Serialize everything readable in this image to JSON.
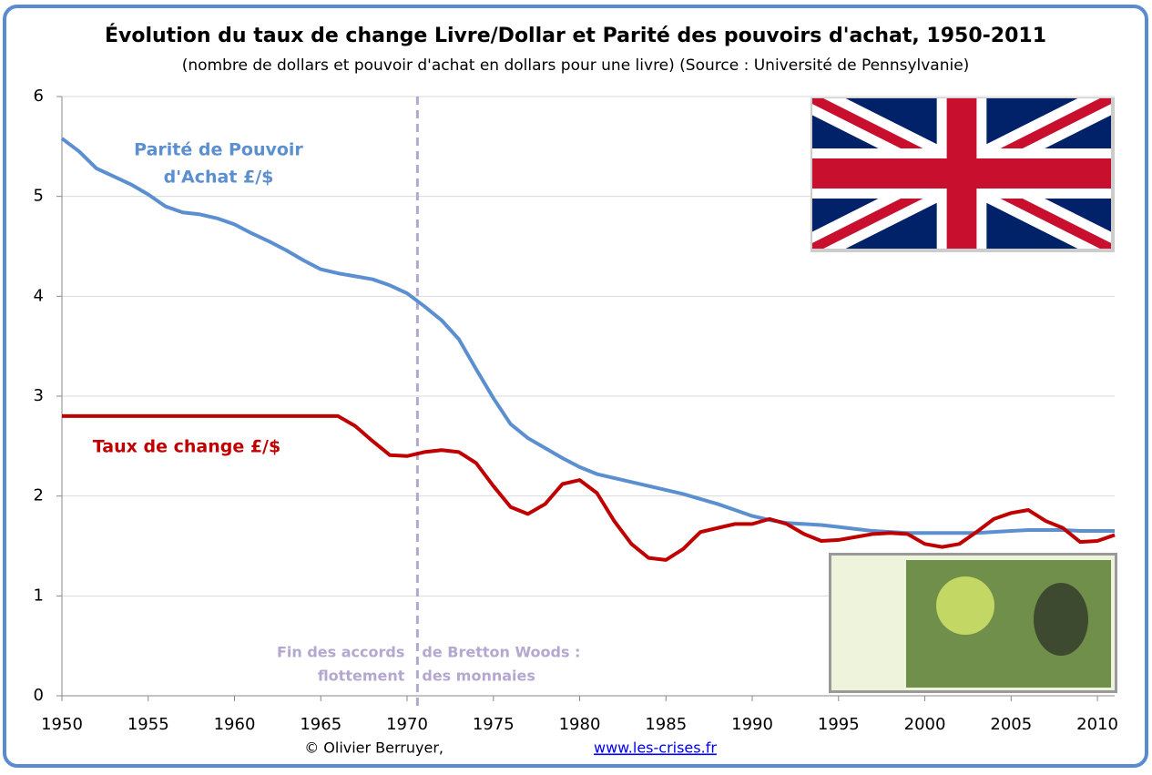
{
  "chart_data": {
    "type": "line",
    "title": "Évolution du taux de change Livre/Dollar et Parité des pouvoirs d'achat, 1950-2011",
    "subtitle": "(nombre de dollars et pouvoir d'achat en dollars pour une livre) (Source : Université de Pennsylvanie)",
    "x": [
      1950,
      1951,
      1952,
      1953,
      1954,
      1955,
      1956,
      1957,
      1958,
      1959,
      1960,
      1961,
      1962,
      1963,
      1964,
      1965,
      1966,
      1967,
      1968,
      1969,
      1970,
      1971,
      1972,
      1973,
      1974,
      1975,
      1976,
      1977,
      1978,
      1979,
      1980,
      1981,
      1982,
      1983,
      1984,
      1985,
      1986,
      1987,
      1988,
      1989,
      1990,
      1991,
      1992,
      1993,
      1994,
      1995,
      1996,
      1997,
      1998,
      1999,
      2000,
      2001,
      2002,
      2003,
      2004,
      2005,
      2006,
      2007,
      2008,
      2009,
      2010,
      2011
    ],
    "series": [
      {
        "name": [
          "Parité de Pouvoir",
          "d'Achat £/$"
        ],
        "color": "#5b8fd0",
        "values": [
          5.58,
          5.45,
          5.28,
          5.2,
          5.12,
          5.02,
          4.9,
          4.84,
          4.82,
          4.78,
          4.72,
          4.63,
          4.55,
          4.46,
          4.36,
          4.27,
          4.23,
          4.2,
          4.17,
          4.11,
          4.03,
          3.9,
          3.76,
          3.57,
          3.27,
          2.98,
          2.72,
          2.58,
          2.48,
          2.38,
          2.29,
          2.22,
          2.18,
          2.14,
          2.1,
          2.06,
          2.02,
          1.97,
          1.92,
          1.86,
          1.8,
          1.76,
          1.73,
          1.72,
          1.71,
          1.69,
          1.67,
          1.65,
          1.64,
          1.63,
          1.63,
          1.63,
          1.63,
          1.63,
          1.64,
          1.65,
          1.66,
          1.66,
          1.66,
          1.65,
          1.65,
          1.65
        ]
      },
      {
        "name": [
          "Taux de change £/$"
        ],
        "color": "#c00000",
        "values": [
          2.8,
          2.8,
          2.8,
          2.8,
          2.8,
          2.8,
          2.8,
          2.8,
          2.8,
          2.8,
          2.8,
          2.8,
          2.8,
          2.8,
          2.8,
          2.8,
          2.8,
          2.7,
          2.55,
          2.41,
          2.4,
          2.44,
          2.46,
          2.44,
          2.33,
          2.1,
          1.89,
          1.82,
          1.92,
          2.12,
          2.16,
          2.03,
          1.75,
          1.52,
          1.38,
          1.36,
          1.47,
          1.64,
          1.68,
          1.72,
          1.72,
          1.77,
          1.72,
          1.62,
          1.55,
          1.56,
          1.59,
          1.62,
          1.63,
          1.62,
          1.52,
          1.49,
          1.52,
          1.64,
          1.77,
          1.83,
          1.86,
          1.75,
          1.68,
          1.54,
          1.55,
          1.61
        ]
      }
    ],
    "xlim": [
      1950,
      2011
    ],
    "xticks": [
      1950,
      1955,
      1960,
      1965,
      1970,
      1975,
      1980,
      1985,
      1990,
      1995,
      2000,
      2005,
      2010
    ],
    "ylim": [
      0,
      6
    ],
    "yticks": [
      0,
      1,
      2,
      3,
      4,
      5,
      6
    ],
    "grid": true,
    "reference_line": {
      "x": 1970.6,
      "color": "#b4a7d0",
      "text_left": [
        "Fin des accords",
        "flottement"
      ],
      "text_right": [
        "de Bretton Woods :",
        "des monnaies"
      ]
    },
    "credit": "© Olivier Berruyer,",
    "link": "www.les-crises.fr"
  }
}
